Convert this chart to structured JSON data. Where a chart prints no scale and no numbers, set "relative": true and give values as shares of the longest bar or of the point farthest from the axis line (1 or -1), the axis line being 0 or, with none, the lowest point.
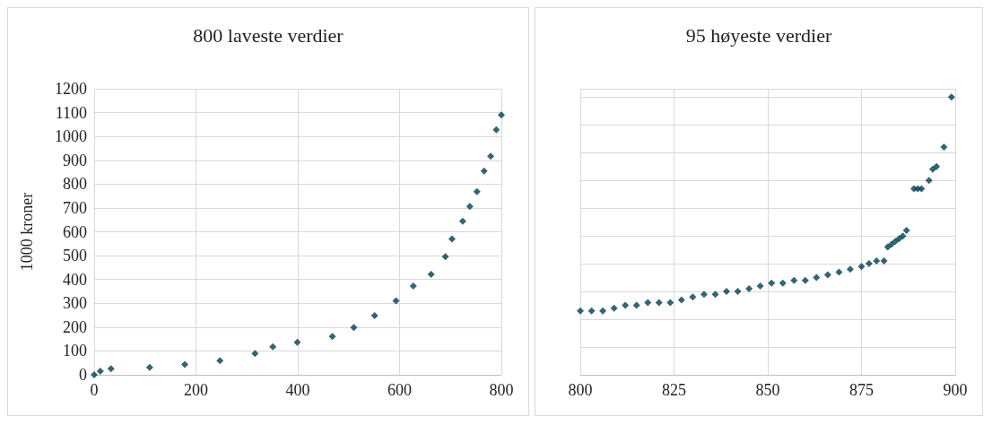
{
  "chart_data": [
    {
      "type": "scatter",
      "title": "800 laveste verdier",
      "ylabel": "1000 kroner",
      "color": "#003f4f",
      "marker": "diamond",
      "grid": true,
      "xlim": [
        0,
        800
      ],
      "xticks": [
        0,
        200,
        400,
        600,
        800
      ],
      "ylim": [
        0,
        1200
      ],
      "yticks": [
        0,
        100,
        200,
        300,
        400,
        500,
        600,
        700,
        800,
        900,
        1000,
        1100,
        1200
      ],
      "x": [
        0,
        12,
        33,
        109,
        178,
        247,
        316,
        351,
        399,
        468,
        510,
        551,
        593,
        627,
        662,
        690,
        703,
        724,
        738,
        752,
        766,
        779,
        790,
        800
      ],
      "values": [
        0,
        15,
        25,
        31,
        43,
        59,
        89,
        118,
        136,
        161,
        198,
        248,
        310,
        372,
        421,
        496,
        570,
        644,
        706,
        768,
        855,
        917,
        1028,
        1090
      ]
    },
    {
      "type": "scatter",
      "title": "95 høyeste verdier",
      "color": "#003f4f",
      "marker": "diamond",
      "grid": true,
      "relative": true,
      "tick_labels": "x",
      "xlim": [
        800,
        900
      ],
      "xticks": [
        800,
        825,
        850,
        875,
        900
      ],
      "x": [
        800,
        803,
        806,
        809,
        812,
        815,
        818,
        821,
        824,
        827,
        830,
        833,
        836,
        839,
        842,
        845,
        848,
        851,
        854,
        857,
        860,
        863,
        866,
        869,
        872,
        875,
        877,
        879,
        881,
        882,
        883,
        884,
        885,
        886,
        887,
        889,
        890,
        891,
        893,
        894,
        895,
        897,
        899
      ],
      "values": [
        0.23,
        0.23,
        0.23,
        0.24,
        0.25,
        0.25,
        0.26,
        0.26,
        0.26,
        0.27,
        0.28,
        0.29,
        0.29,
        0.3,
        0.3,
        0.31,
        0.32,
        0.33,
        0.33,
        0.34,
        0.34,
        0.35,
        0.36,
        0.37,
        0.38,
        0.39,
        0.4,
        0.41,
        0.41,
        0.46,
        0.47,
        0.48,
        0.49,
        0.5,
        0.52,
        0.67,
        0.67,
        0.67,
        0.7,
        0.74,
        0.75,
        0.82,
        1
      ]
    }
  ]
}
